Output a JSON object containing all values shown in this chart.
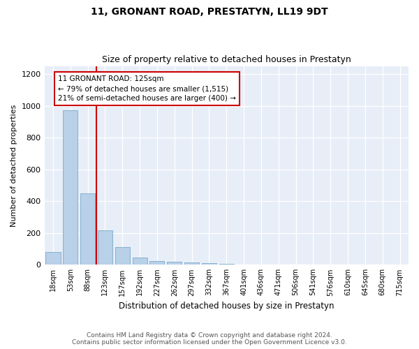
{
  "title": "11, GRONANT ROAD, PRESTATYN, LL19 9DT",
  "subtitle": "Size of property relative to detached houses in Prestatyn",
  "xlabel": "Distribution of detached houses by size in Prestatyn",
  "ylabel": "Number of detached properties",
  "categories": [
    "18sqm",
    "53sqm",
    "88sqm",
    "123sqm",
    "157sqm",
    "192sqm",
    "227sqm",
    "262sqm",
    "297sqm",
    "332sqm",
    "367sqm",
    "401sqm",
    "436sqm",
    "471sqm",
    "506sqm",
    "541sqm",
    "576sqm",
    "610sqm",
    "645sqm",
    "680sqm",
    "715sqm"
  ],
  "values": [
    80,
    970,
    450,
    215,
    110,
    45,
    25,
    20,
    15,
    10,
    5,
    0,
    0,
    0,
    0,
    0,
    0,
    0,
    0,
    0,
    0
  ],
  "bar_color": "#b8d0e8",
  "bar_edge_color": "#6a9fc0",
  "annotation_line1": "11 GRONANT ROAD: 125sqm",
  "annotation_line2": "← 79% of detached houses are smaller (1,515)",
  "annotation_line3": "21% of semi-detached houses are larger (400) →",
  "annotation_box_color": "#cc0000",
  "vline_color": "#cc0000",
  "ylim": [
    0,
    1250
  ],
  "yticks": [
    0,
    200,
    400,
    600,
    800,
    1000,
    1200
  ],
  "footer_line1": "Contains HM Land Registry data © Crown copyright and database right 2024.",
  "footer_line2": "Contains public sector information licensed under the Open Government Licence v3.0.",
  "plot_bg_color": "#e8eef8"
}
